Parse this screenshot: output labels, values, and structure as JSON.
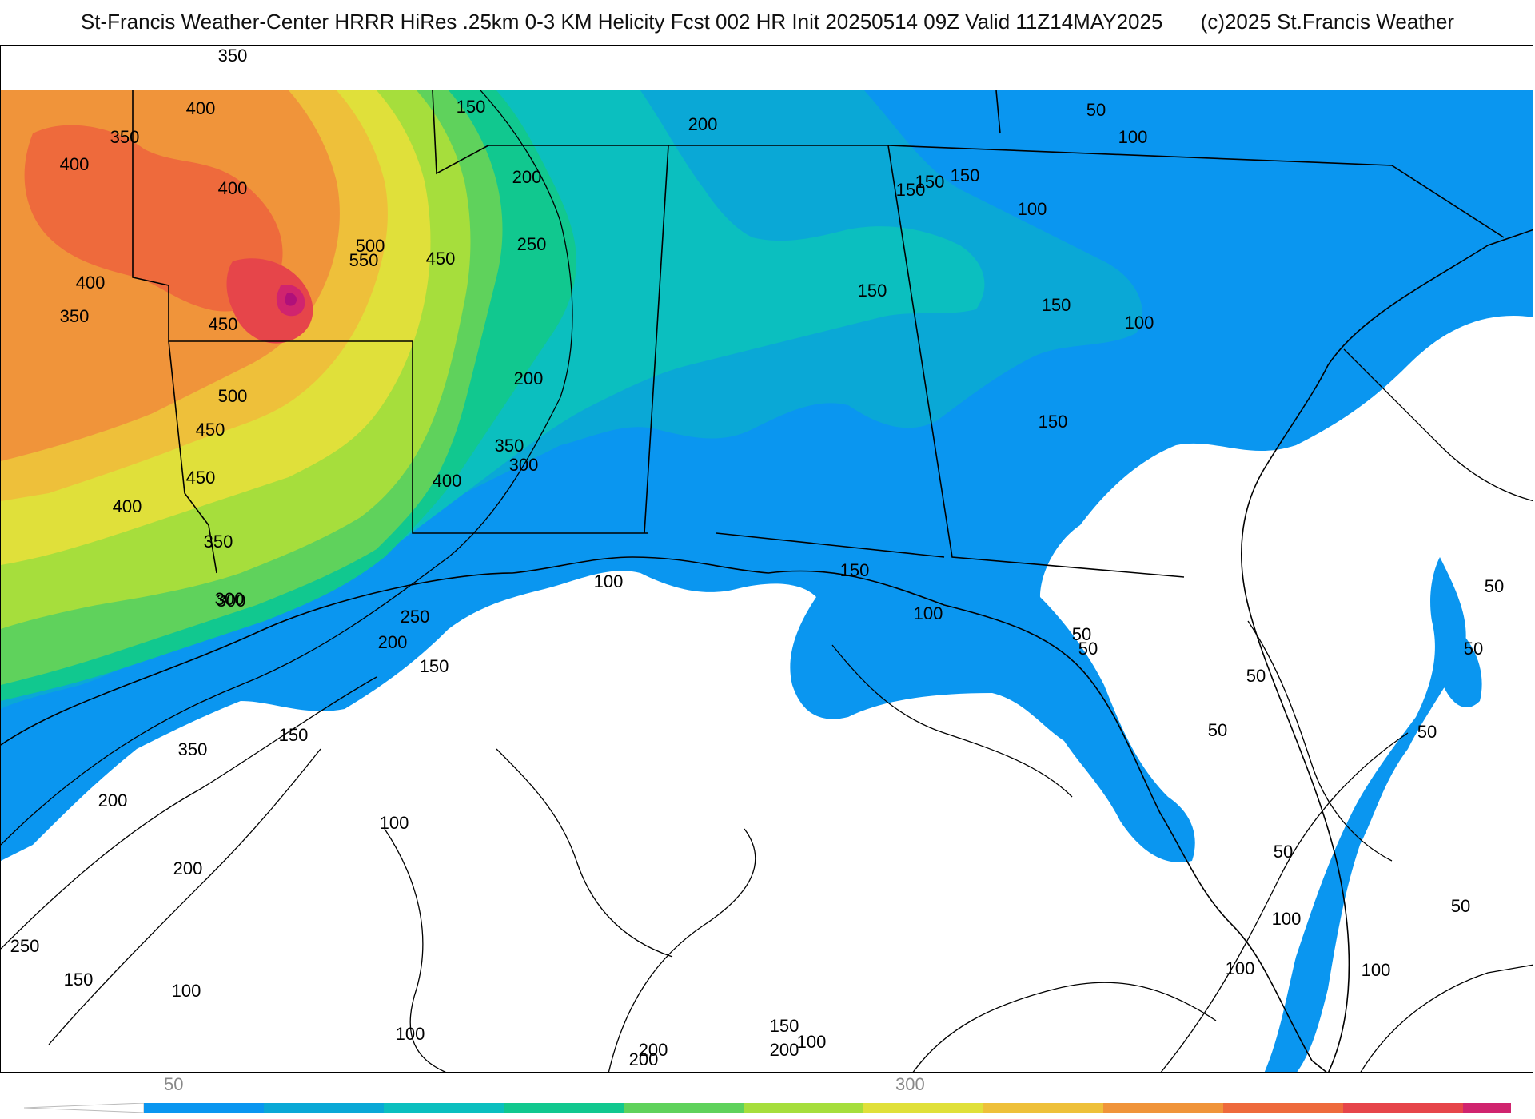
{
  "header": {
    "title": "St-Francis Weather-Center HRRR HiRes .25km 0-3 KM Helicity Fcst 002 HR Init 20250514 09Z  Valid 11Z14MAY2025",
    "copyright": "(c)2025 St.Francis Weather"
  },
  "colors": {
    "c50": "#0a96f0",
    "c100": "#0aa8d6",
    "c150": "#0bbfbf",
    "c200": "#11c88f",
    "c250": "#5fd25c",
    "c300": "#a6de3c",
    "c350": "#e0e03a",
    "c400": "#eec03a",
    "c450": "#f0943a",
    "c500": "#ee6a3c",
    "c550": "#e6454a",
    "c600": "#d0246e",
    "c650": "#b0107a"
  },
  "colorbar": {
    "tick_labels": [
      "50",
      "300"
    ]
  },
  "contour_labels": [
    "350",
    "400",
    "350",
    "400",
    "400",
    "500",
    "550",
    "450",
    "400",
    "350",
    "450",
    "500",
    "450",
    "450",
    "400",
    "150",
    "200",
    "250",
    "200",
    "350",
    "300",
    "400",
    "350",
    "300",
    "250",
    "200",
    "150",
    "300",
    "150",
    "350",
    "200",
    "200",
    "250",
    "150",
    "100",
    "100",
    "100",
    "100",
    "200",
    "200",
    "150",
    "200",
    "150",
    "150",
    "150",
    "150",
    "100",
    "100",
    "150",
    "150",
    "100",
    "50",
    "100",
    "50",
    "50",
    "50",
    "50",
    "50",
    "50",
    "50",
    "50",
    "50",
    "100",
    "100",
    "100",
    "100",
    "150",
    "200"
  ]
}
